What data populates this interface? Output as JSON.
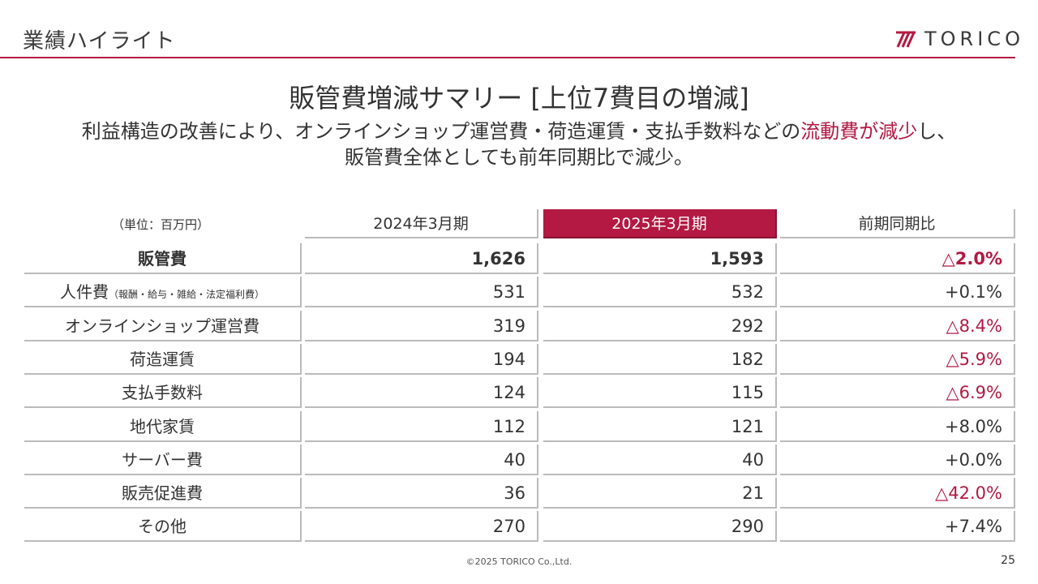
{
  "header": {
    "title": "業績ハイライト",
    "logo_text": "TORICO",
    "accent_color": "#b31942"
  },
  "slide": {
    "title": "販管費増減サマリー [上位7費目の増減]",
    "subtitle_line1_pre": "利益構造の改善により、オンラインショップ運営費・荷造運賃・支払手数料などの",
    "subtitle_line1_highlight": "流動費が減少",
    "subtitle_line1_post": "し、",
    "subtitle_line2": "販管費全体としても前年同期比で減少。"
  },
  "table": {
    "unit": "（単位：百万円）",
    "columns": [
      "2024年3月期",
      "2025年3月期",
      "前期同期比"
    ],
    "rows": [
      {
        "label": "販管費",
        "label_small": "",
        "v2024": "1,626",
        "v2025": "1,593",
        "change": "△2.0%",
        "negative": true,
        "bold": true
      },
      {
        "label": "人件費",
        "label_small": "（報酬・給与・雑給・法定福利費）",
        "v2024": "531",
        "v2025": "532",
        "change": "+0.1%",
        "negative": false,
        "bold": false
      },
      {
        "label": "オンラインショップ運営費",
        "label_small": "",
        "v2024": "319",
        "v2025": "292",
        "change": "△8.4%",
        "negative": true,
        "bold": false
      },
      {
        "label": "荷造運賃",
        "label_small": "",
        "v2024": "194",
        "v2025": "182",
        "change": "△5.9%",
        "negative": true,
        "bold": false
      },
      {
        "label": "支払手数料",
        "label_small": "",
        "v2024": "124",
        "v2025": "115",
        "change": "△6.9%",
        "negative": true,
        "bold": false
      },
      {
        "label": "地代家賃",
        "label_small": "",
        "v2024": "112",
        "v2025": "121",
        "change": "+8.0%",
        "negative": false,
        "bold": false
      },
      {
        "label": "サーバー費",
        "label_small": "",
        "v2024": "40",
        "v2025": "40",
        "change": "+0.0%",
        "negative": false,
        "bold": false
      },
      {
        "label": "販売促進費",
        "label_small": "",
        "v2024": "36",
        "v2025": "21",
        "change": "△42.0%",
        "negative": true,
        "bold": false
      },
      {
        "label": "その他",
        "label_small": "",
        "v2024": "270",
        "v2025": "290",
        "change": "+7.4%",
        "negative": false,
        "bold": false
      }
    ]
  },
  "footer": {
    "copyright": "©2025 TORICO Co.,Ltd.",
    "page_number": "25"
  }
}
